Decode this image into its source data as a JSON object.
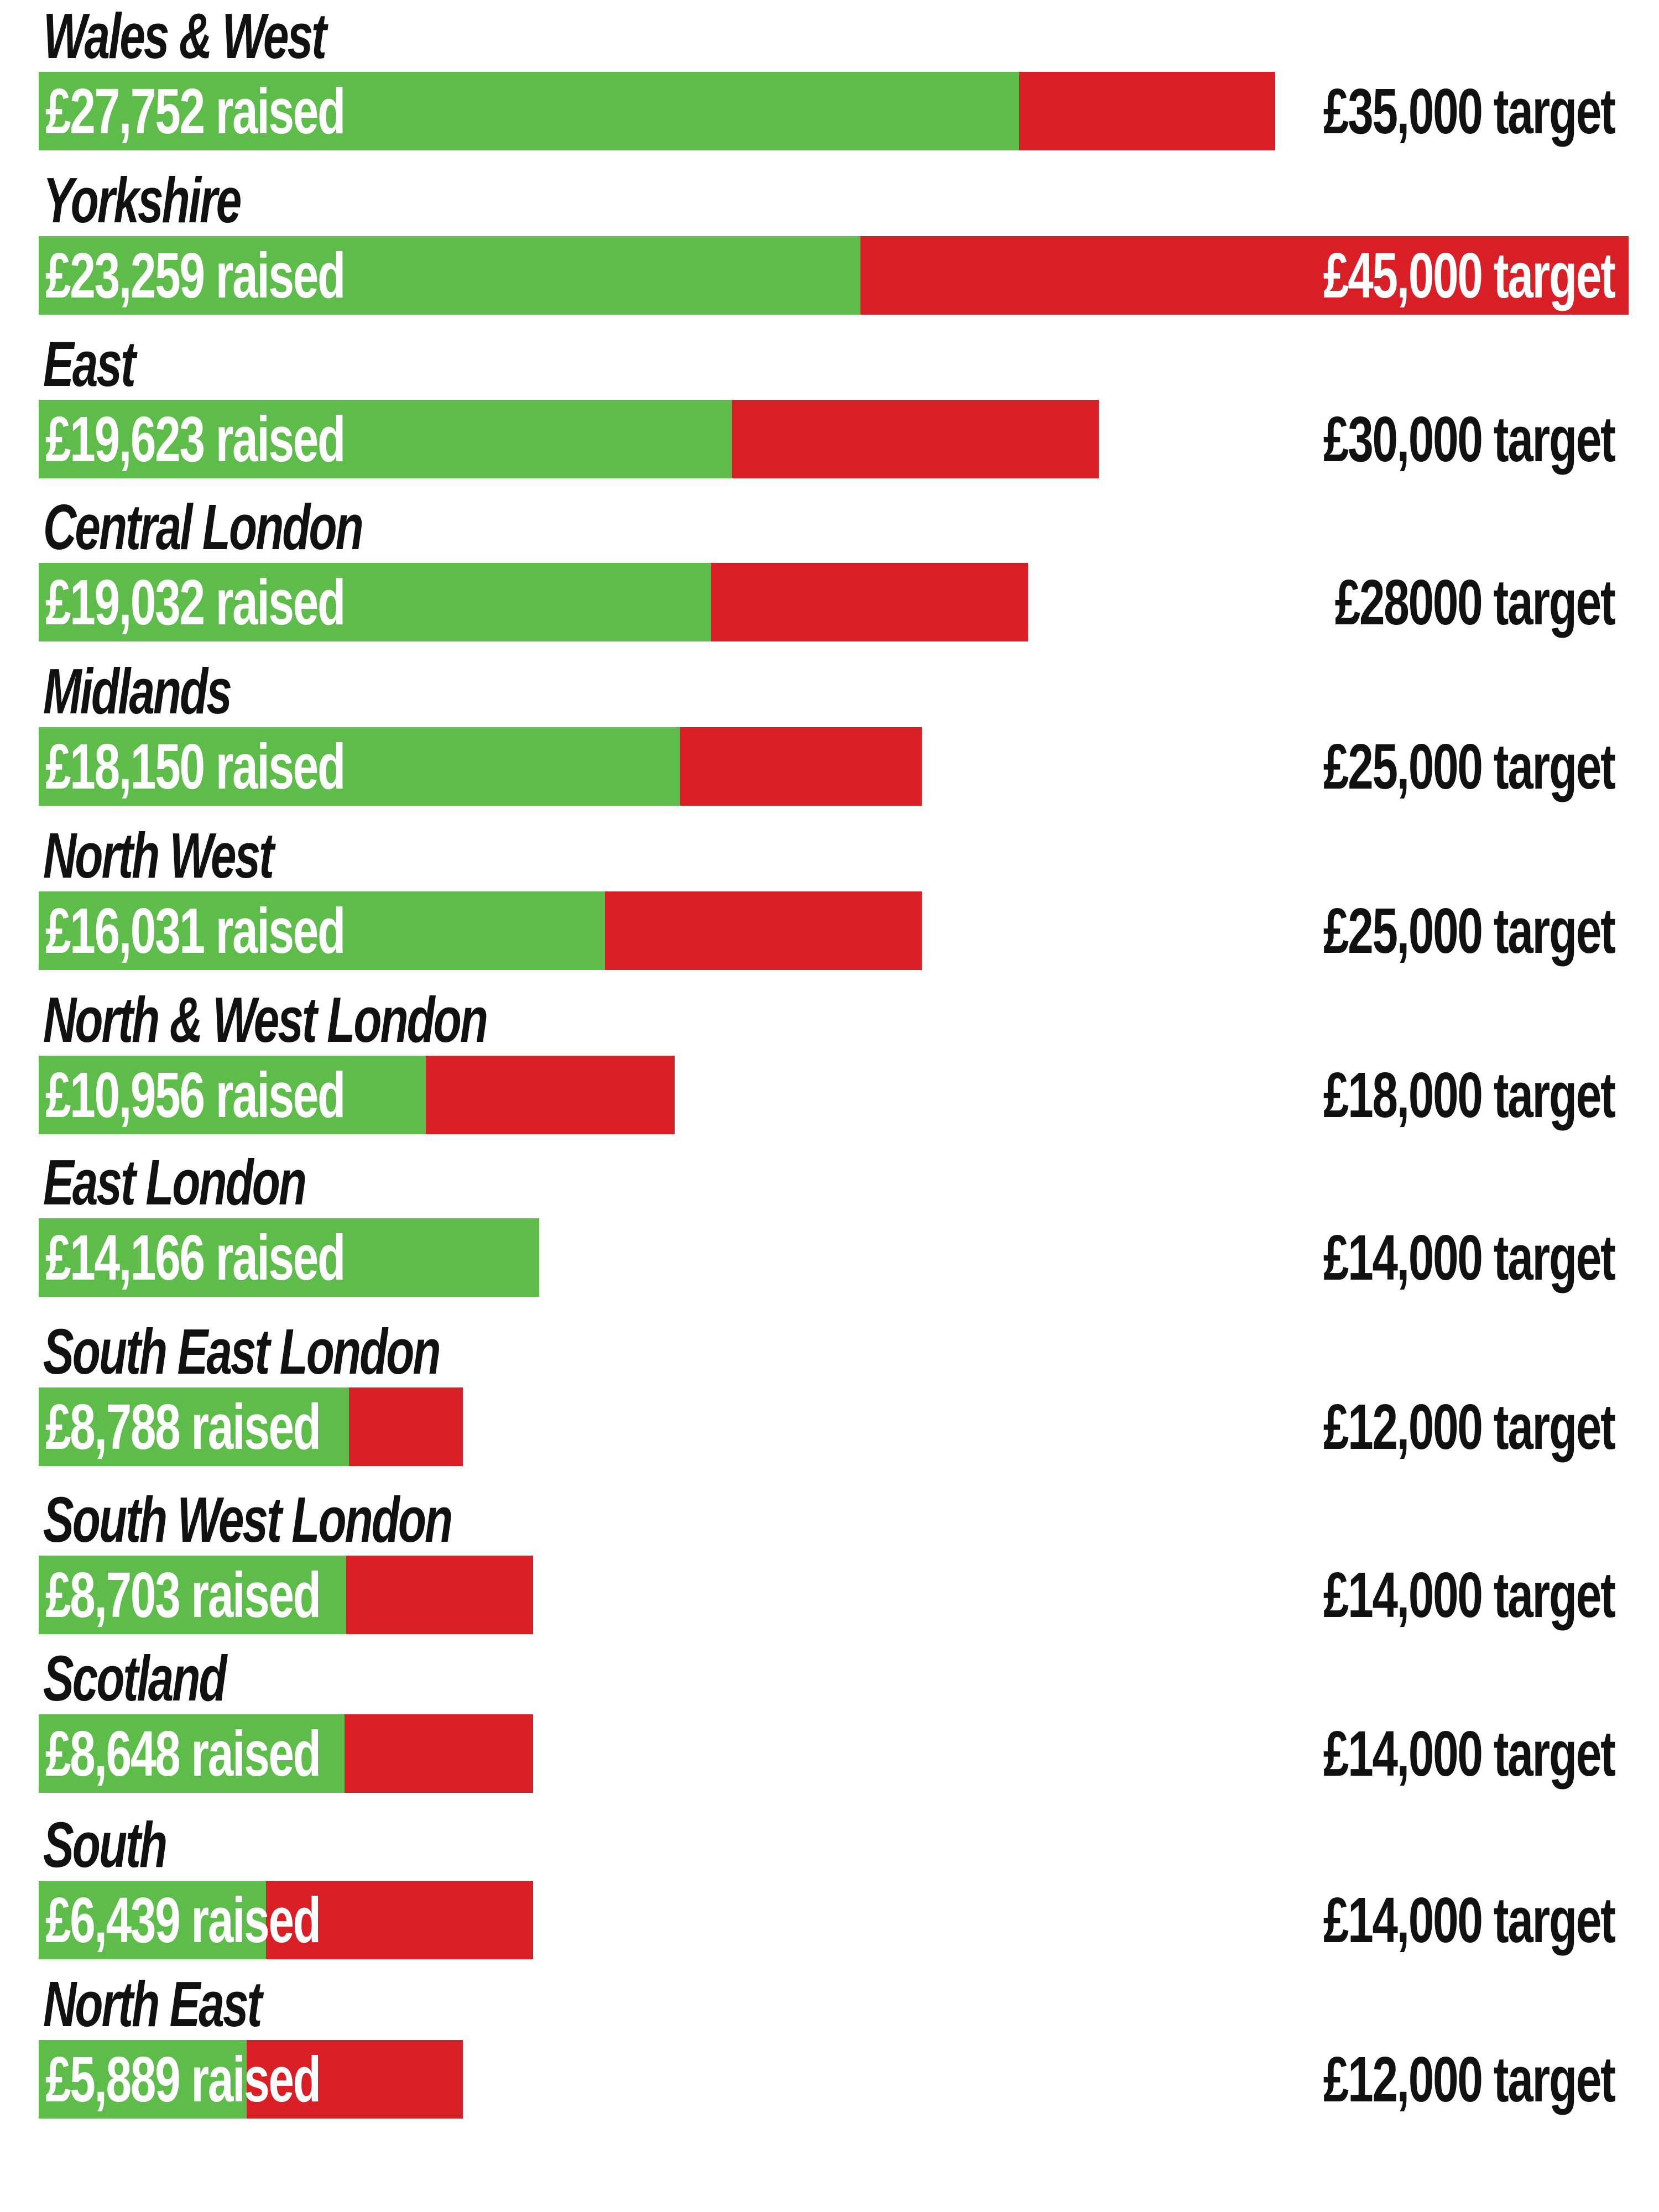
{
  "colors": {
    "raised": "#5ebc4a",
    "target": "#d91f26",
    "background": "#ffffff",
    "text_dark": "#111111",
    "text_light": "#ffffff"
  },
  "chart_data": {
    "type": "bar",
    "orientation": "horizontal",
    "categories": [
      "Wales & West",
      "Yorkshire",
      "East",
      "Central London",
      "Midlands",
      "North West",
      "North & West London",
      "East London",
      "South East London",
      "South West London",
      "Scotland",
      "South",
      "North East"
    ],
    "series": [
      {
        "values": [
          27752,
          23259,
          19623,
          19032,
          18150,
          16031,
          10956,
          14166,
          8788,
          8703,
          8648,
          6439,
          5889
        ],
        "labels": [
          "£27,752 raised",
          "£23,259 raised",
          "£19,623 raised",
          "£19,032 raised",
          "£18,150 raised",
          "£16,031 raised",
          "£10,956 raised",
          "£14,166 raised",
          "£8,788 raised",
          "£8,703 raised",
          "£8,648 raised",
          "£6,439 raised",
          "£5,889 raised"
        ]
      },
      {
        "values": [
          35000,
          45000,
          30000,
          28000,
          25000,
          25000,
          18000,
          14000,
          12000,
          14000,
          14000,
          14000,
          12000
        ],
        "labels": [
          "£35,000 target",
          "£45,000 target",
          "£30,000 target",
          "£28000 target",
          "£25,000 target",
          "£25,000 target",
          "£18,000 target",
          "£14,000 target",
          "£12,000 target",
          "£14,000 target",
          "£14,000 target",
          "£14,000 target",
          "£12,000 target"
        ]
      }
    ],
    "xlim": [
      0,
      45000
    ],
    "title": "",
    "xlabel": "",
    "ylabel": "",
    "grid": false,
    "legend": "none"
  }
}
